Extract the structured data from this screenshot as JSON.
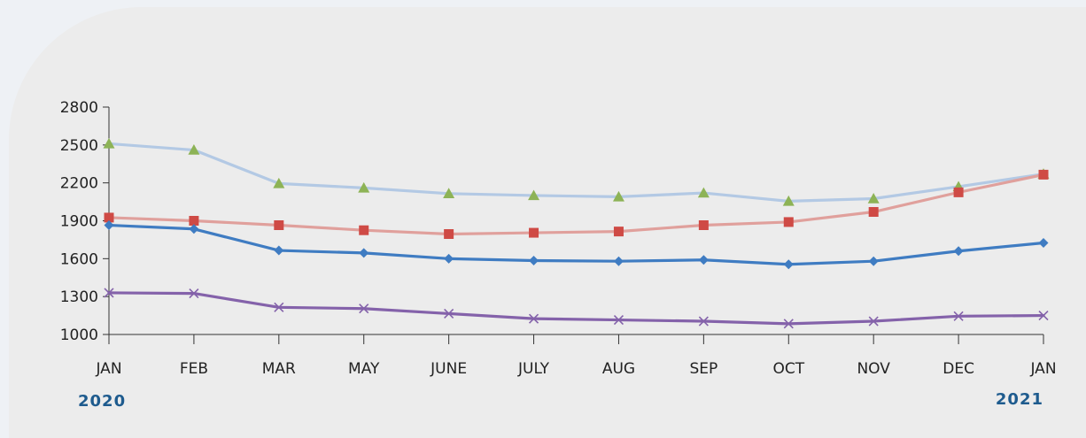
{
  "chart_data": {
    "type": "line",
    "title": "",
    "xlabel": "",
    "ylabel": "",
    "categories": [
      "JAN",
      "FEB",
      "MAR",
      "MAY",
      "JUNE",
      "JULY",
      "AUG",
      "SEP",
      "OCT",
      "NOV",
      "DEC",
      "JAN"
    ],
    "year_labels": {
      "start": "2020",
      "end": "2021"
    },
    "ylim": [
      1000,
      2800
    ],
    "yticks": [
      1000,
      1300,
      1600,
      1900,
      2200,
      2500,
      2800
    ],
    "grid": false,
    "legend": "none",
    "series": [
      {
        "color": "#b3c9e4",
        "marker_color": "#8db356",
        "marker": "triangle",
        "values": [
          2510,
          2460,
          2195,
          2160,
          2115,
          2100,
          2090,
          2120,
          2055,
          2075,
          2170,
          2270
        ]
      },
      {
        "color": "#e0a09c",
        "marker_color": "#cf4a45",
        "marker": "square",
        "values": [
          1925,
          1900,
          1865,
          1825,
          1795,
          1805,
          1815,
          1865,
          1890,
          1970,
          2125,
          2265
        ]
      },
      {
        "color": "#3f7cc2",
        "marker_color": "#3f7cc2",
        "marker": "diamond",
        "values": [
          1865,
          1835,
          1665,
          1645,
          1600,
          1585,
          1580,
          1590,
          1555,
          1580,
          1660,
          1725
        ]
      },
      {
        "color": "#8462aa",
        "marker_color": "#8462aa",
        "marker": "x",
        "values": [
          1330,
          1325,
          1215,
          1205,
          1165,
          1125,
          1115,
          1105,
          1085,
          1105,
          1145,
          1150
        ]
      }
    ]
  }
}
